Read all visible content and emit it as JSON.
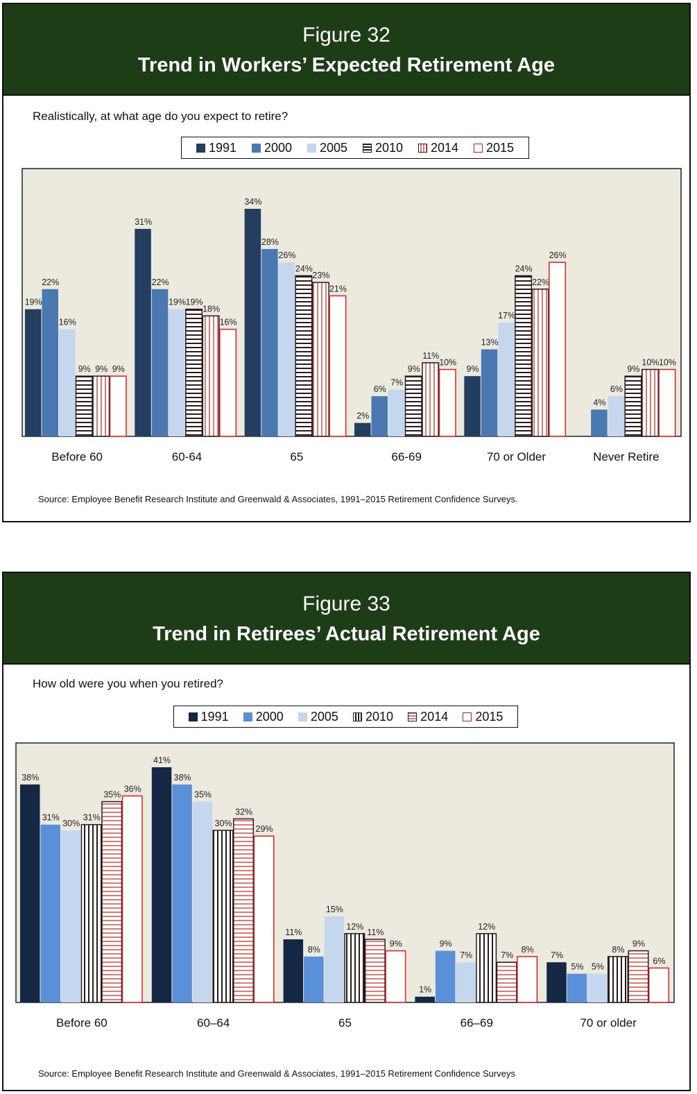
{
  "charts": [
    {
      "figure_label": "Figure 32",
      "title": "Trend in Workers’ Expected Retirement Age",
      "question": "Realistically, at what age do you expect to retire?",
      "source": "Source:  Employee Benefit Research Institute and Greenwald & Associates, 1991–2015 Retirement Confidence Surveys.",
      "legend_position": "top-center",
      "plot_background": "#ece9de",
      "series_styles": [
        {
          "name": "1991",
          "fill": "#243e60",
          "stroke": "#243e60",
          "pattern": "solid"
        },
        {
          "name": "2000",
          "fill": "#4a78b0",
          "stroke": "#4a78b0",
          "pattern": "solid"
        },
        {
          "name": "2005",
          "fill": "#c5d7ee",
          "stroke": "#c5d7ee",
          "pattern": "solid"
        },
        {
          "name": "2010",
          "fill": "#ffffff",
          "stroke": "#2a1a1a",
          "pattern": "hstripes-dark"
        },
        {
          "name": "2014",
          "fill": "#ffffff",
          "stroke": "#2a1a1a",
          "pattern": "vstripes-red"
        },
        {
          "name": "2015",
          "fill": "#ffffff",
          "stroke": "#e0201e",
          "pattern": "solid"
        }
      ]
    },
    {
      "figure_label": "Figure 33",
      "title": "Trend in Retirees’ Actual Retirement Age",
      "question": "How old were you when you retired?",
      "source": "Source:  Employee Benefit Research Institute and Greenwald & Associates, 1991–2015 Retirement Confidence Surveys",
      "legend_position": "top-center",
      "plot_background": "#ece9de",
      "series_styles": [
        {
          "name": "1991",
          "fill": "#142744",
          "stroke": "#142744",
          "pattern": "solid"
        },
        {
          "name": "2000",
          "fill": "#5a90d8",
          "stroke": "#5a90d8",
          "pattern": "solid"
        },
        {
          "name": "2005",
          "fill": "#c5d7ee",
          "stroke": "#c5d7ee",
          "pattern": "solid"
        },
        {
          "name": "2010",
          "fill": "#ffffff",
          "stroke": "#2a1a1a",
          "pattern": "vstripes-dark"
        },
        {
          "name": "2014",
          "fill": "#ffffff",
          "stroke": "#2a1a1a",
          "pattern": "hstripes-red"
        },
        {
          "name": "2015",
          "fill": "#ffffff",
          "stroke": "#e0201e",
          "pattern": "solid"
        }
      ]
    }
  ],
  "chart_data": [
    {
      "type": "bar",
      "title": "Trend in Workers’ Expected Retirement Age",
      "categories": [
        "Before 60",
        "60-64",
        "65",
        "66-69",
        "70 or Older",
        "Never Retire"
      ],
      "series": [
        {
          "name": "1991",
          "values": [
            19,
            31,
            34,
            2,
            9,
            null
          ]
        },
        {
          "name": "2000",
          "values": [
            22,
            22,
            28,
            6,
            13,
            4
          ]
        },
        {
          "name": "2005",
          "values": [
            16,
            19,
            26,
            7,
            17,
            6
          ]
        },
        {
          "name": "2010",
          "values": [
            9,
            19,
            24,
            9,
            24,
            9
          ]
        },
        {
          "name": "2014",
          "values": [
            9,
            18,
            23,
            11,
            22,
            10
          ]
        },
        {
          "name": "2015",
          "values": [
            9,
            16,
            21,
            10,
            26,
            10
          ]
        }
      ],
      "value_format": "percent",
      "ylim": [
        0,
        34
      ],
      "grid": false,
      "legend": "top-center"
    },
    {
      "type": "bar",
      "title": "Trend in Retirees’ Actual Retirement Age",
      "categories": [
        "Before 60",
        "60–64",
        "65",
        "66–69",
        "70 or older"
      ],
      "series": [
        {
          "name": "1991",
          "values": [
            38,
            41,
            11,
            1,
            7
          ]
        },
        {
          "name": "2000",
          "values": [
            31,
            38,
            8,
            9,
            5
          ]
        },
        {
          "name": "2005",
          "values": [
            30,
            35,
            15,
            7,
            5
          ]
        },
        {
          "name": "2010",
          "values": [
            31,
            30,
            12,
            12,
            8
          ]
        },
        {
          "name": "2014",
          "values": [
            35,
            32,
            11,
            7,
            9
          ]
        },
        {
          "name": "2015",
          "values": [
            36,
            29,
            9,
            8,
            6
          ]
        }
      ],
      "value_format": "percent",
      "ylim": [
        0,
        41
      ],
      "grid": false,
      "legend": "top-center"
    }
  ]
}
